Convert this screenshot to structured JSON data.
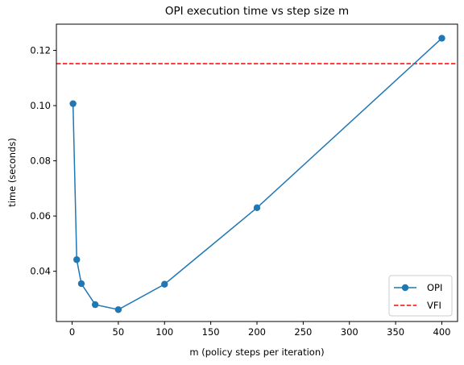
{
  "chart_data": {
    "type": "line",
    "title": "OPI execution time vs step size m",
    "xlabel": "m (policy steps per iteration)",
    "ylabel": "time (seconds)",
    "xlim": [
      -17,
      417
    ],
    "ylim": [
      0.0218,
      0.1295
    ],
    "xticks": [
      0,
      50,
      100,
      150,
      200,
      250,
      300,
      350,
      400
    ],
    "xtick_labels": [
      "0",
      "50",
      "100",
      "150",
      "200",
      "250",
      "300",
      "350",
      "400"
    ],
    "yticks": [
      0.04,
      0.06,
      0.08,
      0.1,
      0.12
    ],
    "ytick_labels": [
      "0.04",
      "0.06",
      "0.08",
      "0.10",
      "0.12"
    ],
    "grid": false,
    "legend_position": "lower-right",
    "series": [
      {
        "name": "OPI",
        "style": "line-with-markers",
        "color": "#1f77b4",
        "x": [
          1,
          5,
          10,
          25,
          50,
          100,
          200,
          400
        ],
        "y": [
          0.1007,
          0.0442,
          0.0355,
          0.0279,
          0.0261,
          0.0353,
          0.063,
          0.1244
        ]
      },
      {
        "name": "VFI",
        "style": "dashed-horizontal",
        "color": "#ff0000",
        "y": 0.1152
      }
    ]
  }
}
